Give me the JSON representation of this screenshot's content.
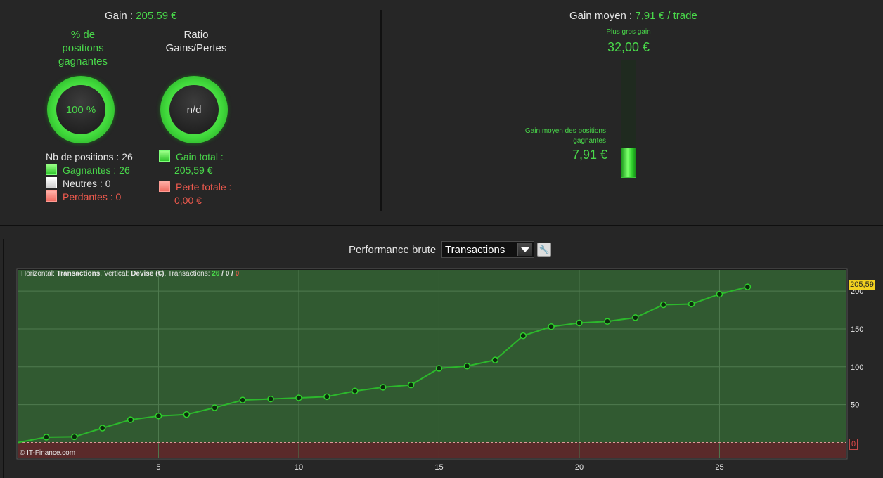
{
  "gain": {
    "label": "Gain : ",
    "value": "205,59 €"
  },
  "win_pct": {
    "title_lines": [
      "% de",
      "positions",
      "gagnantes"
    ],
    "value": "100 %"
  },
  "ratio": {
    "title_lines": [
      "Ratio",
      "Gains/Pertes"
    ],
    "value": "n/d"
  },
  "positions": {
    "count": "Nb de positions : 26",
    "winning": "Gagnantes : 26",
    "neutral": "Neutres : 0",
    "losing": "Perdantes : 0"
  },
  "totals": {
    "gain_label": "Gain total :",
    "gain_value": "205,59 €",
    "loss_label": "Perte totale :",
    "loss_value": "0,00 €"
  },
  "avg_gain": {
    "label": "Gain moyen : ",
    "value": "7,91 € / trade",
    "max_label": "Plus gros gain",
    "max_value": "32,00 €",
    "avg_win_label_1": "Gain moyen des positions",
    "avg_win_label_2": "gagnantes",
    "avg_win_value": "7,91 €",
    "fill_fraction": 0.247
  },
  "performance": {
    "title": "Performance brute",
    "selected": "Transactions",
    "wrench_glyph": "🔧",
    "wrench_icon": "wrench-icon"
  },
  "chart_info": {
    "prefix": "Horizontal: ",
    "h_value": "Transactions",
    "mid": ", Vertical: ",
    "v_value": "Devise (€)",
    "trans": ", Transactions: ",
    "t_win": "26",
    "sep1": " / ",
    "t_neutral": "0",
    "sep2": " / ",
    "t_loss": "0",
    "copyright": "© IT-Finance.com"
  },
  "badges": {
    "last": "205,59",
    "zero": "0"
  },
  "colors": {
    "accent": "#49d84a",
    "loss": "#f05a4e",
    "plot_bg": "#315a31",
    "neg_bg": "#5a2a2a",
    "line": "#2cb82c"
  },
  "chart_data": {
    "type": "line",
    "x": [
      0,
      1,
      2,
      3,
      4,
      5,
      6,
      7,
      8,
      9,
      10,
      11,
      12,
      13,
      14,
      15,
      16,
      17,
      18,
      19,
      20,
      21,
      22,
      23,
      24,
      25,
      26
    ],
    "series": [
      {
        "values": [
          0,
          7,
          7.5,
          19,
          30,
          35,
          37,
          46,
          56,
          57.5,
          59,
          60.5,
          68,
          73,
          76,
          98,
          101,
          109,
          141,
          153,
          158,
          160,
          165,
          182,
          183,
          196,
          205.59
        ]
      }
    ],
    "xlim": [
      0,
      29.5
    ],
    "ylim": [
      -20,
      228
    ],
    "x_ticks": [
      5,
      10,
      15,
      20,
      25
    ],
    "y_ticks": [
      50,
      100,
      150,
      200
    ],
    "y_tick_labels": [
      "50",
      "100",
      "150",
      "200"
    ],
    "grid": true
  }
}
